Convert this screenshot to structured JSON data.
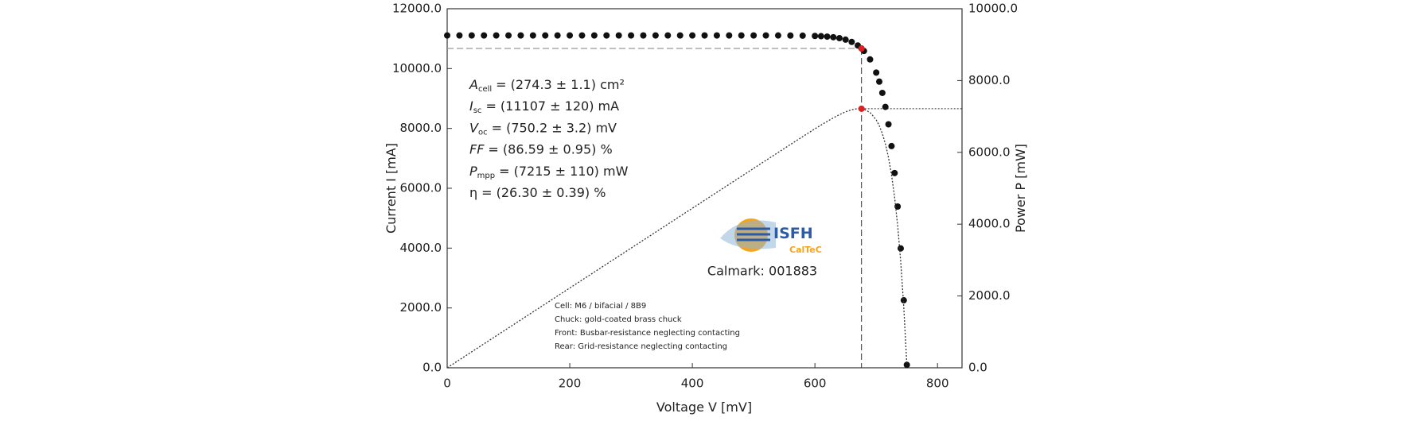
{
  "chart_data": {
    "type": "iv-curve",
    "x_label": "Voltage V [mV]",
    "y_label": "Current I [mA]",
    "y2_label": "Power P [mW]",
    "x": [
      0,
      20,
      40,
      60,
      80,
      100,
      120,
      140,
      160,
      180,
      200,
      220,
      240,
      260,
      280,
      300,
      320,
      340,
      360,
      380,
      400,
      420,
      440,
      460,
      480,
      500,
      520,
      540,
      560,
      580,
      600,
      610,
      620,
      630,
      640,
      650,
      660,
      670,
      676,
      680,
      690,
      700,
      705,
      710,
      715,
      720,
      725,
      730,
      735,
      740,
      745,
      750
    ],
    "series": [
      {
        "color": "#111111",
        "marker": "dot",
        "values": [
          11107,
          11107,
          11107,
          11107,
          11107,
          11107,
          11107,
          11107,
          11107,
          11107,
          11107,
          11107,
          11107,
          11107,
          11107,
          11107,
          11107,
          11107,
          11107,
          11107,
          11107,
          11107,
          11107,
          11107,
          11107,
          11107,
          11107,
          11106,
          11104,
          11100,
          11091,
          11083,
          11069,
          11049,
          11017,
          10967,
          10891,
          10772,
          10672,
          10589,
          10306,
          9866,
          9564,
          9187,
          8719,
          8137,
          7409,
          6509,
          5389,
          3990,
          2256,
          97
        ]
      },
      {
        "color": "#333333",
        "marker": "dotted-line",
        "axis": "y2",
        "values": [
          0,
          222.1,
          444.3,
          666.4,
          888.6,
          1110.7,
          1332.8,
          1555.0,
          1777.1,
          1999.3,
          2221.4,
          2443.5,
          2665.7,
          2887.8,
          3110.0,
          3332.1,
          3554.2,
          3776.4,
          3998.5,
          4220.7,
          4442.8,
          4664.9,
          4887.1,
          5109.2,
          5331.4,
          5553.5,
          5775.6,
          5997.2,
          6218.2,
          6438.0,
          6654.6,
          6760.6,
          6862.8,
          6960.9,
          7050.9,
          7128.6,
          7188.1,
          7217.2,
          7214.3,
          7200.5,
          7111.1,
          6906.2,
          6742.6,
          6522.8,
          6234.1,
          5858.6,
          5371.5,
          4751.6,
          3960.9,
          2952.6,
          1680.7,
          72.8
        ]
      }
    ],
    "mpp": {
      "x": 676,
      "y": 10672,
      "y2": 7215,
      "color": "#e02020"
    },
    "xlim": [
      0,
      840
    ],
    "xticks": [
      0,
      200,
      400,
      600,
      800
    ],
    "ylim": [
      0,
      12000
    ],
    "yticks": [
      {
        "value": 0,
        "label": "0.0"
      },
      {
        "value": 2000,
        "label": "2000.0"
      },
      {
        "value": 4000,
        "label": "4000.0"
      },
      {
        "value": 6000,
        "label": "6000.0"
      },
      {
        "value": 8000,
        "label": "8000.0"
      },
      {
        "value": 10000,
        "label": "10000.0"
      },
      {
        "value": 12000,
        "label": "12000.0"
      }
    ],
    "y2lim": [
      0,
      10000
    ],
    "y2ticks": [
      {
        "value": 0,
        "label": "0.0"
      },
      {
        "value": 2000,
        "label": "2000.0"
      },
      {
        "value": 4000,
        "label": "4000.0"
      },
      {
        "value": 6000,
        "label": "6000.0"
      },
      {
        "value": 8000,
        "label": "8000.0"
      },
      {
        "value": 10000,
        "label": "10000.0"
      }
    ],
    "grid": false,
    "parameters": [
      {
        "symbol": "A",
        "sub": "cell",
        "rest": "= (274.3 ± 1.1) cm²"
      },
      {
        "symbol": "I",
        "sub": "sc",
        "rest": "= (11107 ± 120) mA"
      },
      {
        "symbol": "V",
        "sub": "oc",
        "rest": "= (750.2 ± 3.2) mV"
      },
      {
        "symbol": "FF",
        "rest": "= (86.59 ± 0.95) %"
      },
      {
        "symbol": "P",
        "sub": "mpp",
        "rest": "= (7215 ± 110) mW"
      },
      {
        "symbol": "η",
        "rest": "= (26.30 ± 0.39) %"
      }
    ],
    "logo": {
      "name": "ISFH",
      "sub": "CalTeC"
    },
    "calmark": "Calmark: 001883",
    "notes": [
      "Cell: M6 / bifacial / 8B9",
      "Chuck: gold-coated brass chuck",
      "Front: Busbar-resistance neglecting contacting",
      "Rear: Grid-resistance neglecting contacting"
    ]
  }
}
